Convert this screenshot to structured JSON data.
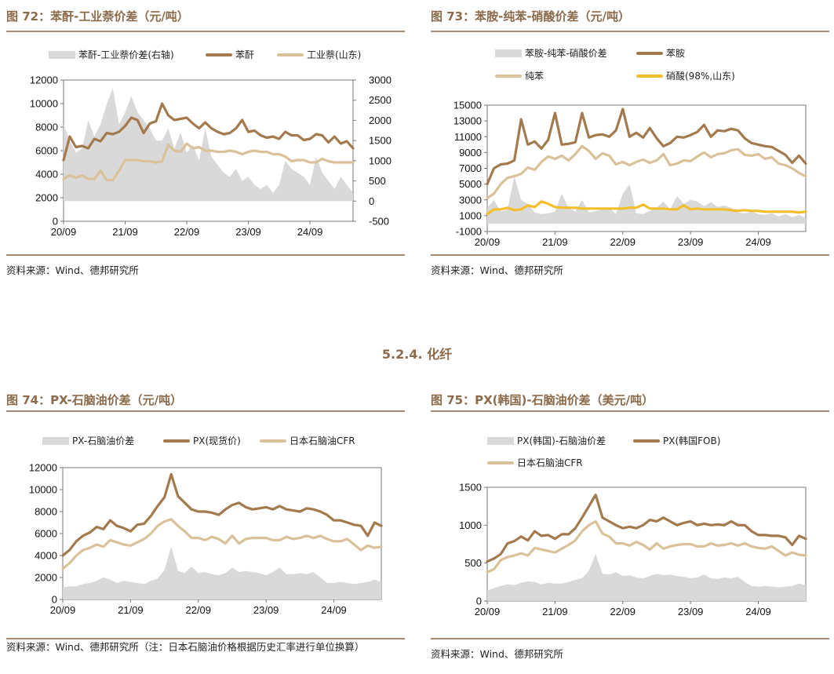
{
  "section_heading": "5.2.4. 化纤",
  "colors": {
    "spread": "#D9D9D9",
    "dark": "#A37A4E",
    "light": "#D9C29A",
    "yellow": "#F2BE2C",
    "rule": "#A48A72",
    "title": "#8B6A4A"
  },
  "panels": [
    {
      "id": "p72",
      "title": "图 72：苯酐-工业萘价差（元/吨）",
      "source": "资料来源：Wind、德邦研究所",
      "legend": [
        "苯酐-工业萘价差(右轴)",
        "苯酐",
        "工业萘(山东)"
      ]
    },
    {
      "id": "p73",
      "title": "图 73：苯胺-纯苯-硝酸价差（元/吨）",
      "source": "资料来源：Wind、德邦研究所",
      "legend": [
        "苯胺-纯苯-硝酸价差",
        "苯胺",
        "纯苯",
        "硝酸(98%,山东)"
      ]
    },
    {
      "id": "p74",
      "title": "图 74：PX-石脑油价差（元/吨）",
      "source": "资料来源：Wind、德邦研究所（注：日本石脑油价格根据历史汇率进行单位换算）",
      "legend": [
        "PX-石脑油价差",
        "PX(现货价)",
        "日本石脑油CFR"
      ]
    },
    {
      "id": "p75",
      "title": "图 75：PX(韩国)-石脑油价差（美元/吨）",
      "source": "资料来源：Wind、德邦研究所",
      "legend": [
        "PX(韩国)-石脑油价差",
        "PX(韩国FOB)",
        "日本石脑油CFR"
      ]
    }
  ],
  "chart_data": [
    {
      "id": "p72",
      "type": "line",
      "title": "苯酐-工业萘价差（元/吨）",
      "x": [
        2020.7,
        2020.8,
        2020.9,
        2021.0,
        2021.1,
        2021.2,
        2021.3,
        2021.4,
        2021.5,
        2021.6,
        2021.7,
        2021.8,
        2021.9,
        2022.0,
        2022.1,
        2022.2,
        2022.3,
        2022.4,
        2022.5,
        2022.6,
        2022.7,
        2022.8,
        2022.9,
        2023.0,
        2023.1,
        2023.2,
        2023.3,
        2023.4,
        2023.5,
        2023.6,
        2023.7,
        2023.8,
        2023.9,
        2024.0,
        2024.1,
        2024.2,
        2024.3,
        2024.4,
        2024.5,
        2024.6,
        2024.7,
        2024.8,
        2024.9,
        2025.0,
        2025.1,
        2025.2,
        2025.3,
        2025.4
      ],
      "xticks": [
        "20/09",
        "21/09",
        "22/09",
        "23/09",
        "24/09"
      ],
      "xtick_values": [
        2020.7,
        2021.7,
        2022.7,
        2023.7,
        2024.7
      ],
      "xlim": [
        2020.7,
        2025.4
      ],
      "ylim_left": [
        0,
        12000
      ],
      "yticks_left": [
        0,
        2000,
        4000,
        6000,
        8000,
        10000,
        12000
      ],
      "ylim_right": [
        -500,
        3000
      ],
      "yticks_right": [
        -500,
        0,
        500,
        1000,
        1500,
        2000,
        2500,
        3000
      ],
      "series": [
        {
          "name": "苯酐-工业萘价差(右轴)",
          "axis": "right",
          "kind": "area",
          "values": [
            1900,
            1500,
            1200,
            1300,
            2000,
            1600,
            1900,
            2400,
            2800,
            1900,
            2200,
            2600,
            2200,
            2000,
            1800,
            1500,
            1500,
            1800,
            1300,
            1700,
            1200,
            1400,
            1000,
            1800,
            1100,
            900,
            700,
            600,
            800,
            500,
            600,
            400,
            300,
            400,
            200,
            400,
            1000,
            800,
            700,
            600,
            400,
            1100,
            700,
            500,
            300,
            600,
            400,
            200
          ]
        },
        {
          "name": "苯酐",
          "axis": "left",
          "kind": "line",
          "values": [
            5200,
            7200,
            6300,
            6400,
            6200,
            7000,
            6800,
            7500,
            7400,
            7600,
            8100,
            8800,
            8600,
            7500,
            8300,
            8500,
            10000,
            9000,
            8600,
            8700,
            8800,
            8300,
            7900,
            8400,
            7900,
            7600,
            7400,
            7500,
            7900,
            8600,
            7600,
            7700,
            7300,
            7100,
            7200,
            7000,
            7600,
            7300,
            7300,
            6900,
            7000,
            7400,
            7300,
            6700,
            7200,
            6600,
            6800,
            6200
          ]
        },
        {
          "name": "工业萘(山东)",
          "axis": "left",
          "kind": "line",
          "values": [
            3600,
            3900,
            3700,
            3900,
            3600,
            3600,
            4300,
            3500,
            3500,
            4300,
            5200,
            5200,
            5200,
            5100,
            5100,
            5000,
            5100,
            6500,
            6000,
            5900,
            6600,
            6200,
            6300,
            6000,
            6000,
            5900,
            5900,
            6000,
            5900,
            5700,
            5900,
            6000,
            5900,
            5900,
            5700,
            5700,
            5500,
            5100,
            5200,
            5200,
            5000,
            5000,
            5300,
            5100,
            5000,
            5000,
            5000,
            5000
          ]
        }
      ]
    },
    {
      "id": "p73",
      "type": "line",
      "title": "苯胺-纯苯-硝酸价差（元/吨）",
      "x": [
        2020.7,
        2020.8,
        2020.9,
        2021.0,
        2021.1,
        2021.2,
        2021.3,
        2021.4,
        2021.5,
        2021.6,
        2021.7,
        2021.8,
        2021.9,
        2022.0,
        2022.1,
        2022.2,
        2022.3,
        2022.4,
        2022.5,
        2022.6,
        2022.7,
        2022.8,
        2022.9,
        2023.0,
        2023.1,
        2023.2,
        2023.3,
        2023.4,
        2023.5,
        2023.6,
        2023.7,
        2023.8,
        2023.9,
        2024.0,
        2024.1,
        2024.2,
        2024.3,
        2024.4,
        2024.5,
        2024.6,
        2024.7,
        2024.8,
        2024.9,
        2025.0,
        2025.1,
        2025.2,
        2025.3,
        2025.4
      ],
      "xticks": [
        "20/09",
        "21/09",
        "22/09",
        "23/09",
        "24/09"
      ],
      "xtick_values": [
        2020.7,
        2021.7,
        2022.7,
        2023.7,
        2024.7
      ],
      "xlim": [
        2020.7,
        2025.4
      ],
      "ylim": [
        -1000,
        15000
      ],
      "yticks": [
        -1000,
        1000,
        3000,
        5000,
        7000,
        9000,
        11000,
        13000,
        15000
      ],
      "series": [
        {
          "name": "苯胺-纯苯-硝酸价差",
          "kind": "area",
          "values": [
            2000,
            3000,
            1500,
            1800,
            6000,
            3000,
            2500,
            1400,
            1200,
            1300,
            1500,
            3800,
            2000,
            1500,
            3000,
            1400,
            1600,
            1800,
            2000,
            1200,
            3800,
            5000,
            1300,
            1200,
            1600,
            2000,
            2800,
            1800,
            3500,
            2500,
            3000,
            2800,
            2200,
            2700,
            2100,
            2300,
            2000,
            1400,
            1300,
            1500,
            1200,
            1100,
            1300,
            900,
            1200,
            800,
            1100,
            700
          ]
        },
        {
          "name": "苯胺",
          "kind": "line",
          "values": [
            5000,
            7000,
            7500,
            7600,
            8000,
            13200,
            10000,
            10400,
            9500,
            10600,
            14000,
            10000,
            10100,
            10300,
            14000,
            10900,
            11200,
            11300,
            11000,
            11800,
            14500,
            11000,
            11500,
            10900,
            12100,
            10800,
            9800,
            10200,
            11000,
            10900,
            11200,
            11600,
            12500,
            11000,
            11800,
            11700,
            12000,
            11800,
            10800,
            10200,
            10000,
            9800,
            9700,
            9200,
            8700,
            7700,
            8600,
            7600
          ]
        },
        {
          "name": "纯苯",
          "kind": "line",
          "values": [
            3200,
            3800,
            5000,
            5800,
            6000,
            6300,
            7100,
            6800,
            7800,
            8500,
            8200,
            8600,
            8000,
            8800,
            9800,
            9200,
            8200,
            8900,
            8600,
            7500,
            7800,
            7400,
            7800,
            8100,
            7700,
            8000,
            8800,
            7400,
            7600,
            8000,
            7900,
            8500,
            9000,
            8400,
            8800,
            8900,
            9300,
            9400,
            8700,
            8600,
            8800,
            8200,
            8400,
            7600,
            7400,
            7000,
            6400,
            6000
          ]
        },
        {
          "name": "硝酸(98%,山东)",
          "kind": "line",
          "values": [
            1200,
            1800,
            1800,
            2000,
            1700,
            1800,
            2300,
            2100,
            2800,
            2500,
            2100,
            2000,
            2000,
            2000,
            1900,
            1900,
            1900,
            1900,
            1900,
            1900,
            1900,
            2000,
            2000,
            2400,
            1900,
            1900,
            1900,
            1800,
            1800,
            2300,
            1800,
            1900,
            1800,
            1800,
            1800,
            1800,
            1700,
            1600,
            1700,
            1600,
            1600,
            1500,
            1500,
            1500,
            1500,
            1500,
            1400,
            1500
          ]
        }
      ]
    },
    {
      "id": "p74",
      "type": "line",
      "title": "PX-石脑油价差（元/吨）",
      "x": [
        2020.7,
        2020.8,
        2020.9,
        2021.0,
        2021.1,
        2021.2,
        2021.3,
        2021.4,
        2021.5,
        2021.6,
        2021.7,
        2021.8,
        2021.9,
        2022.0,
        2022.1,
        2022.2,
        2022.3,
        2022.4,
        2022.5,
        2022.6,
        2022.7,
        2022.8,
        2022.9,
        2023.0,
        2023.1,
        2023.2,
        2023.3,
        2023.4,
        2023.5,
        2023.6,
        2023.7,
        2023.8,
        2023.9,
        2024.0,
        2024.1,
        2024.2,
        2024.3,
        2024.4,
        2024.5,
        2024.6,
        2024.7,
        2024.8,
        2024.9,
        2025.0,
        2025.1,
        2025.2,
        2025.3,
        2025.4
      ],
      "xticks": [
        "20/09",
        "21/09",
        "22/09",
        "23/09",
        "24/09"
      ],
      "xtick_values": [
        2020.7,
        2021.7,
        2022.7,
        2023.7,
        2024.7
      ],
      "xlim": [
        2020.7,
        2025.4
      ],
      "ylim": [
        0,
        12000
      ],
      "yticks": [
        0,
        2000,
        4000,
        6000,
        8000,
        10000,
        12000
      ],
      "series": [
        {
          "name": "PX-石脑油价差",
          "kind": "area",
          "values": [
            1100,
            1200,
            1200,
            1400,
            1500,
            1700,
            2000,
            1800,
            1500,
            1700,
            1600,
            1500,
            1400,
            1700,
            1900,
            2700,
            4800,
            2600,
            2400,
            3000,
            2400,
            2500,
            2300,
            2200,
            2400,
            2900,
            2500,
            2600,
            2500,
            2400,
            2200,
            2500,
            2900,
            2300,
            2300,
            2400,
            2300,
            2500,
            2000,
            1500,
            1500,
            1600,
            1500,
            1400,
            1500,
            1600,
            1800,
            1600
          ]
        },
        {
          "name": "PX(现货价)",
          "kind": "line",
          "values": [
            4000,
            4500,
            5300,
            5800,
            6100,
            6600,
            6400,
            7200,
            6700,
            6500,
            6200,
            6800,
            6900,
            7600,
            8500,
            9300,
            11400,
            9400,
            8800,
            8200,
            8000,
            8000,
            7900,
            7700,
            8200,
            8600,
            8800,
            8400,
            8200,
            8300,
            8400,
            8200,
            8500,
            8200,
            8100,
            8000,
            8300,
            8200,
            8000,
            7700,
            7200,
            7200,
            7000,
            6800,
            6700,
            5800,
            7000,
            6700
          ]
        },
        {
          "name": "日本石脑油CFR",
          "kind": "line",
          "values": [
            2800,
            3300,
            4000,
            4500,
            4700,
            5000,
            4800,
            5400,
            5200,
            5000,
            4900,
            5200,
            5500,
            6000,
            6700,
            7100,
            7300,
            6700,
            6200,
            5600,
            5600,
            5400,
            5700,
            5500,
            5100,
            5800,
            5100,
            5500,
            5600,
            5600,
            5600,
            5400,
            5400,
            5700,
            5500,
            5600,
            5800,
            5600,
            5800,
            5500,
            5300,
            5300,
            5500,
            5000,
            4500,
            4900,
            4700,
            4800
          ]
        }
      ]
    },
    {
      "id": "p75",
      "type": "line",
      "title": "PX(韩国)-石脑油价差（美元/吨）",
      "x": [
        2020.7,
        2020.8,
        2020.9,
        2021.0,
        2021.1,
        2021.2,
        2021.3,
        2021.4,
        2021.5,
        2021.6,
        2021.7,
        2021.8,
        2021.9,
        2022.0,
        2022.1,
        2022.2,
        2022.3,
        2022.4,
        2022.5,
        2022.6,
        2022.7,
        2022.8,
        2022.9,
        2023.0,
        2023.1,
        2023.2,
        2023.3,
        2023.4,
        2023.5,
        2023.6,
        2023.7,
        2023.8,
        2023.9,
        2024.0,
        2024.1,
        2024.2,
        2024.3,
        2024.4,
        2024.5,
        2024.6,
        2024.7,
        2024.8,
        2024.9,
        2025.0,
        2025.1,
        2025.2,
        2025.3,
        2025.4
      ],
      "xticks": [
        "20/09",
        "21/09",
        "22/09",
        "23/09",
        "24/09"
      ],
      "xtick_values": [
        2020.7,
        2021.7,
        2022.7,
        2023.7,
        2024.7
      ],
      "xlim": [
        2020.7,
        2025.4
      ],
      "ylim": [
        0,
        1500
      ],
      "yticks": [
        0,
        500,
        1000,
        1500
      ],
      "series": [
        {
          "name": "PX(韩国)-石脑油价差",
          "kind": "area",
          "values": [
            140,
            170,
            200,
            220,
            210,
            240,
            260,
            250,
            220,
            240,
            230,
            230,
            250,
            280,
            300,
            400,
            620,
            360,
            350,
            380,
            330,
            340,
            310,
            300,
            330,
            360,
            340,
            350,
            330,
            320,
            300,
            310,
            350,
            300,
            290,
            310,
            300,
            320,
            250,
            200,
            190,
            200,
            190,
            180,
            190,
            200,
            230,
            210
          ]
        },
        {
          "name": "PX(韩国FOB)",
          "kind": "line",
          "values": [
            520,
            560,
            620,
            760,
            790,
            850,
            800,
            920,
            860,
            870,
            820,
            880,
            880,
            960,
            1100,
            1250,
            1400,
            1100,
            1050,
            1000,
            960,
            980,
            960,
            1000,
            1070,
            1050,
            1100,
            1050,
            1000,
            1030,
            1050,
            1000,
            1020,
            1000,
            1010,
            1000,
            1050,
            1000,
            1000,
            920,
            870,
            870,
            860,
            860,
            840,
            740,
            860,
            820
          ]
        },
        {
          "name": "日本石脑油CFR",
          "kind": "line",
          "values": [
            380,
            420,
            540,
            580,
            600,
            630,
            600,
            700,
            680,
            660,
            640,
            690,
            740,
            800,
            920,
            1000,
            1050,
            890,
            850,
            760,
            760,
            730,
            780,
            740,
            680,
            760,
            690,
            720,
            740,
            750,
            750,
            720,
            720,
            760,
            730,
            740,
            760,
            730,
            760,
            720,
            700,
            690,
            720,
            660,
            600,
            640,
            610,
            600
          ]
        }
      ]
    }
  ]
}
